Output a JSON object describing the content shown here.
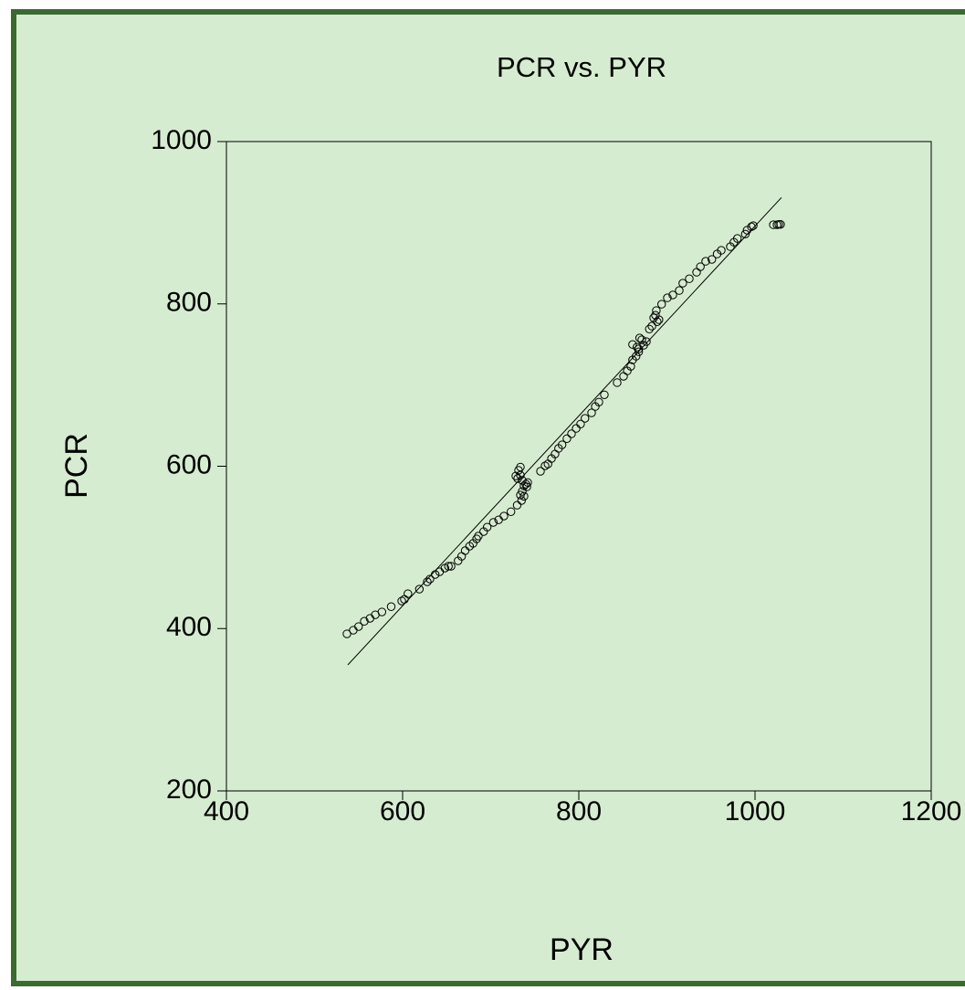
{
  "chart_data": {
    "type": "scatter",
    "title": "PCR vs. PYR",
    "x_label": "PYR",
    "y_label": "PCR",
    "xlim": [
      400,
      1200
    ],
    "ylim": [
      200,
      1000
    ],
    "xticks": [
      400,
      600,
      800,
      1000,
      1200
    ],
    "yticks": [
      200,
      400,
      600,
      800,
      1000
    ],
    "color": "#000000",
    "x": [
      536.8,
      544,
      550,
      556.5,
      563,
      569,
      576.5,
      587,
      599,
      602,
      606,
      619,
      628,
      631,
      637,
      642,
      648,
      652,
      655,
      663,
      667,
      671,
      676,
      680,
      684,
      686,
      692,
      696,
      703,
      709,
      715,
      723,
      730,
      735,
      728.5,
      731.6,
      733.7,
      735.8,
      737.8,
      739.9,
      742,
      735.8,
      733.7,
      737.8,
      730.6,
      733.7,
      741,
      756.5,
      761.7,
      765,
      769,
      773,
      777,
      781,
      786.5,
      791.7,
      797,
      802,
      807,
      814.5,
      818.7,
      822.8,
      829,
      843.5,
      850.8,
      855,
      859,
      861,
      865,
      861,
      866,
      868,
      873.6,
      869,
      868,
      871.5,
      876.7,
      880,
      883,
      885,
      887,
      889,
      891,
      888,
      894,
      900.5,
      906.7,
      914,
      918,
      925.4,
      933.7,
      938,
      944,
      951,
      957,
      961.7,
      972,
      976,
      980,
      989,
      991,
      995.9,
      998,
      1020.8,
      1025,
      1027,
      1029
    ],
    "values": [
      393.5,
      398,
      402.5,
      409,
      412.6,
      417,
      420.5,
      427,
      434,
      436,
      443,
      448.6,
      457.6,
      461,
      466.6,
      470,
      474.5,
      476.8,
      476.8,
      483.5,
      489,
      496,
      501.5,
      505,
      510.5,
      514,
      519.5,
      525,
      530.8,
      534,
      538.6,
      544,
      552,
      557.8,
      588,
      595,
      599,
      582.5,
      575.8,
      578,
      580,
      569,
      564.5,
      563,
      584.8,
      589,
      574.6,
      593.8,
      600.5,
      602.8,
      609.5,
      615,
      622,
      626.4,
      634,
      640,
      646.6,
      652,
      659,
      665.8,
      673.6,
      679,
      688,
      703,
      710.8,
      717.5,
      723,
      731,
      735.5,
      750,
      746.8,
      744.5,
      749,
      758,
      741,
      755.8,
      753.5,
      769,
      772.6,
      782.8,
      786,
      778,
      780.5,
      791.8,
      799.6,
      807.5,
      811,
      816.5,
      825.5,
      831,
      839,
      845.8,
      852.5,
      854.8,
      861.5,
      866,
      870.5,
      876,
      880.6,
      886,
      890.8,
      895,
      896.4,
      897.5,
      897.5,
      898,
      898
    ],
    "fit_line": {
      "x": [
        537.8,
        1030
      ],
      "y": [
        355.3,
        931
      ]
    }
  }
}
